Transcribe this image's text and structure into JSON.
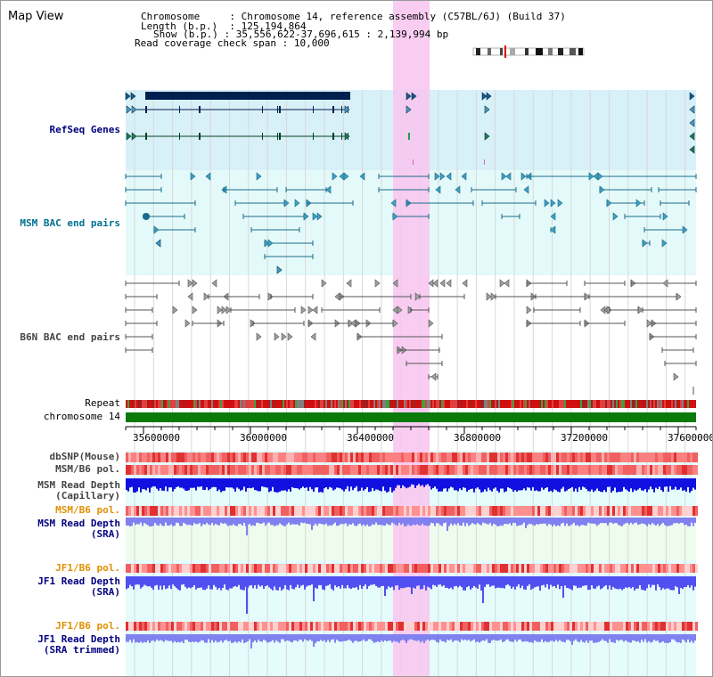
{
  "title": "Map View",
  "info": {
    "chromosome_key": "Chromosome",
    "chromosome_val": "Chromosome 14, reference assembly (C57BL/6J) (Build 37)",
    "length_key": "Length (b.p.)",
    "length_val": "125,194,864",
    "show_key": "Show (b.p.)",
    "show_val": "35,556,622-37,696,615 : 2,139,994 bp",
    "coverage_key": "Read coverage check span",
    "coverage_val": "10,000"
  },
  "tracks": {
    "refseq": "RefSeq Genes",
    "msm_bac": "MSM BAC end pairs",
    "b6n_bac": "B6N BAC end pairs",
    "repeat": "Repeat",
    "chromosome": "chromosome 14",
    "dbsnp": "dbSNP(Mouse)",
    "msm_b6_pol_1": "MSM/B6 pol.",
    "msm_depth_cap_1": "MSM Read Depth",
    "msm_depth_cap_2": "(Capillary)",
    "msm_b6_pol_2": "MSM/B6 pol.",
    "msm_depth_sra_1": "MSM Read Depth",
    "msm_depth_sra_2": "(SRA)",
    "jf1_b6_pol_1": "JF1/B6 pol.",
    "jf1_depth_sra_1": "JF1 Read Depth",
    "jf1_depth_sra_2": "(SRA)",
    "jf1_b6_pol_2": "JF1/B6 pol.",
    "jf1_depth_trim_1": "JF1 Read Depth",
    "jf1_depth_trim_2": "(SRA trimmed)"
  },
  "axis": {
    "ticks": [
      "35600000",
      "36000000",
      "36400000",
      "36800000",
      "37200000",
      "37600000"
    ]
  },
  "colors": {
    "label_gene": "#000080",
    "label_msm": "#007090",
    "label_b6n": "#444444",
    "label_pol": "#e09000",
    "label_depth": "#000080",
    "highlight": "#f8c8f0",
    "chromosome_bar": "#0a7a0a"
  }
}
